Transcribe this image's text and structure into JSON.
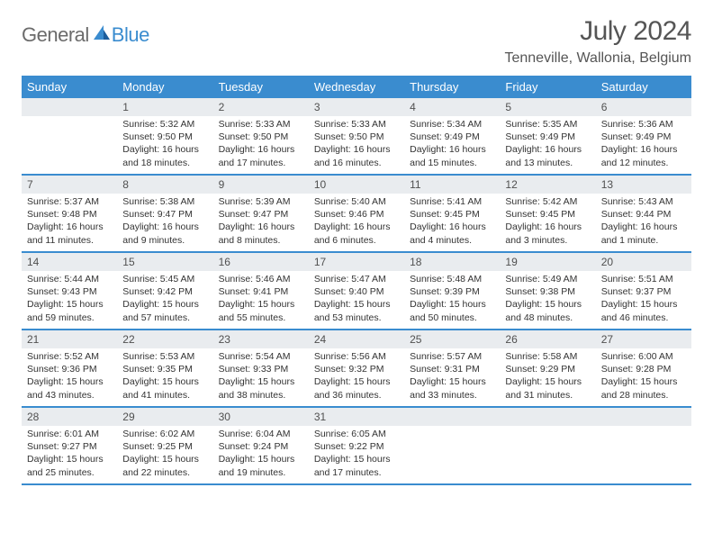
{
  "logo": {
    "general": "General",
    "blue": "Blue"
  },
  "title": "July 2024",
  "location": "Tenneville, Wallonia, Belgium",
  "colors": {
    "header_bg": "#3a8ccf",
    "header_text": "#ffffff",
    "daynum_bg": "#e9ecef",
    "body_text": "#333333",
    "border": "#3a8ccf"
  },
  "day_names": [
    "Sunday",
    "Monday",
    "Tuesday",
    "Wednesday",
    "Thursday",
    "Friday",
    "Saturday"
  ],
  "weeks": [
    [
      null,
      {
        "d": "1",
        "sr": "5:32 AM",
        "ss": "9:50 PM",
        "dl": "16 hours and 18 minutes."
      },
      {
        "d": "2",
        "sr": "5:33 AM",
        "ss": "9:50 PM",
        "dl": "16 hours and 17 minutes."
      },
      {
        "d": "3",
        "sr": "5:33 AM",
        "ss": "9:50 PM",
        "dl": "16 hours and 16 minutes."
      },
      {
        "d": "4",
        "sr": "5:34 AM",
        "ss": "9:49 PM",
        "dl": "16 hours and 15 minutes."
      },
      {
        "d": "5",
        "sr": "5:35 AM",
        "ss": "9:49 PM",
        "dl": "16 hours and 13 minutes."
      },
      {
        "d": "6",
        "sr": "5:36 AM",
        "ss": "9:49 PM",
        "dl": "16 hours and 12 minutes."
      }
    ],
    [
      {
        "d": "7",
        "sr": "5:37 AM",
        "ss": "9:48 PM",
        "dl": "16 hours and 11 minutes."
      },
      {
        "d": "8",
        "sr": "5:38 AM",
        "ss": "9:47 PM",
        "dl": "16 hours and 9 minutes."
      },
      {
        "d": "9",
        "sr": "5:39 AM",
        "ss": "9:47 PM",
        "dl": "16 hours and 8 minutes."
      },
      {
        "d": "10",
        "sr": "5:40 AM",
        "ss": "9:46 PM",
        "dl": "16 hours and 6 minutes."
      },
      {
        "d": "11",
        "sr": "5:41 AM",
        "ss": "9:45 PM",
        "dl": "16 hours and 4 minutes."
      },
      {
        "d": "12",
        "sr": "5:42 AM",
        "ss": "9:45 PM",
        "dl": "16 hours and 3 minutes."
      },
      {
        "d": "13",
        "sr": "5:43 AM",
        "ss": "9:44 PM",
        "dl": "16 hours and 1 minute."
      }
    ],
    [
      {
        "d": "14",
        "sr": "5:44 AM",
        "ss": "9:43 PM",
        "dl": "15 hours and 59 minutes."
      },
      {
        "d": "15",
        "sr": "5:45 AM",
        "ss": "9:42 PM",
        "dl": "15 hours and 57 minutes."
      },
      {
        "d": "16",
        "sr": "5:46 AM",
        "ss": "9:41 PM",
        "dl": "15 hours and 55 minutes."
      },
      {
        "d": "17",
        "sr": "5:47 AM",
        "ss": "9:40 PM",
        "dl": "15 hours and 53 minutes."
      },
      {
        "d": "18",
        "sr": "5:48 AM",
        "ss": "9:39 PM",
        "dl": "15 hours and 50 minutes."
      },
      {
        "d": "19",
        "sr": "5:49 AM",
        "ss": "9:38 PM",
        "dl": "15 hours and 48 minutes."
      },
      {
        "d": "20",
        "sr": "5:51 AM",
        "ss": "9:37 PM",
        "dl": "15 hours and 46 minutes."
      }
    ],
    [
      {
        "d": "21",
        "sr": "5:52 AM",
        "ss": "9:36 PM",
        "dl": "15 hours and 43 minutes."
      },
      {
        "d": "22",
        "sr": "5:53 AM",
        "ss": "9:35 PM",
        "dl": "15 hours and 41 minutes."
      },
      {
        "d": "23",
        "sr": "5:54 AM",
        "ss": "9:33 PM",
        "dl": "15 hours and 38 minutes."
      },
      {
        "d": "24",
        "sr": "5:56 AM",
        "ss": "9:32 PM",
        "dl": "15 hours and 36 minutes."
      },
      {
        "d": "25",
        "sr": "5:57 AM",
        "ss": "9:31 PM",
        "dl": "15 hours and 33 minutes."
      },
      {
        "d": "26",
        "sr": "5:58 AM",
        "ss": "9:29 PM",
        "dl": "15 hours and 31 minutes."
      },
      {
        "d": "27",
        "sr": "6:00 AM",
        "ss": "9:28 PM",
        "dl": "15 hours and 28 minutes."
      }
    ],
    [
      {
        "d": "28",
        "sr": "6:01 AM",
        "ss": "9:27 PM",
        "dl": "15 hours and 25 minutes."
      },
      {
        "d": "29",
        "sr": "6:02 AM",
        "ss": "9:25 PM",
        "dl": "15 hours and 22 minutes."
      },
      {
        "d": "30",
        "sr": "6:04 AM",
        "ss": "9:24 PM",
        "dl": "15 hours and 19 minutes."
      },
      {
        "d": "31",
        "sr": "6:05 AM",
        "ss": "9:22 PM",
        "dl": "15 hours and 17 minutes."
      },
      null,
      null,
      null
    ]
  ],
  "labels": {
    "sunrise": "Sunrise:",
    "sunset": "Sunset:",
    "daylight": "Daylight:"
  }
}
